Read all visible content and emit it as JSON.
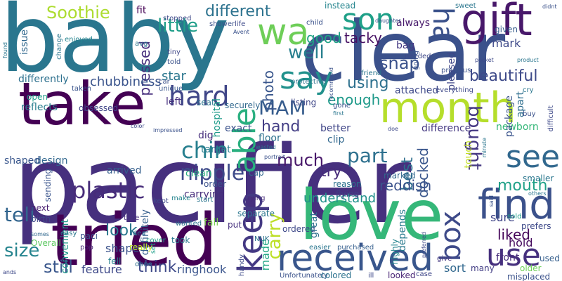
{
  "words": [
    {
      "text": "pacifier",
      "color": "#46307e"
    },
    {
      "text": "baby",
      "color": "#2a768e"
    },
    {
      "text": "clear",
      "color": "#3b518b"
    },
    {
      "text": "tried",
      "color": "#440154"
    },
    {
      "text": "love",
      "color": "#35b779"
    },
    {
      "text": "take",
      "color": "#440154"
    },
    {
      "text": "month",
      "color": "#b5de2b"
    },
    {
      "text": "gift",
      "color": "#48186a"
    },
    {
      "text": "find",
      "color": "#3b518b"
    },
    {
      "text": "received",
      "color": "#39568c"
    },
    {
      "text": "wa",
      "color": "#6ece58"
    },
    {
      "text": "say",
      "color": "#21918c"
    },
    {
      "text": "keep",
      "color": "#443983"
    },
    {
      "text": "see",
      "color": "#31688e"
    },
    {
      "text": "son",
      "color": "#1fa088"
    },
    {
      "text": "use",
      "color": "#46307e"
    },
    {
      "text": "hard",
      "color": "#404688"
    },
    {
      "text": "ha",
      "color": "#3b528b"
    },
    {
      "text": "able",
      "color": "#29af7f"
    },
    {
      "text": "box",
      "color": "#3e4a89"
    },
    {
      "text": "carry",
      "color": "#bddf26"
    },
    {
      "text": "plastic",
      "color": "#472c7a"
    },
    {
      "text": "tell",
      "color": "#32658e"
    },
    {
      "text": "MAM",
      "color": "#365c8d"
    },
    {
      "text": "chin",
      "color": "#277f8e"
    },
    {
      "text": "Soothie",
      "color": "#addc30"
    },
    {
      "text": "different",
      "color": "#2c728e"
    },
    {
      "text": "little",
      "color": "#1f9e89"
    },
    {
      "text": "snap",
      "color": "#3b528b"
    },
    {
      "text": "beautiful",
      "color": "#3e4a89"
    },
    {
      "text": "well",
      "color": "#277f8e"
    },
    {
      "text": "good",
      "color": "#20a386"
    },
    {
      "text": "tacky",
      "color": "#471063"
    },
    {
      "text": "mark",
      "color": "#3e4989"
    },
    {
      "text": "part",
      "color": "#2d708e"
    },
    {
      "text": "much",
      "color": "#48186a"
    },
    {
      "text": "bought",
      "color": "#453882"
    },
    {
      "text": "mouth",
      "color": "#1fa188"
    },
    {
      "text": "nipple",
      "color": "#3e4a89"
    },
    {
      "text": "size",
      "color": "#25848e"
    },
    {
      "text": "best",
      "color": "#2e6e8e"
    },
    {
      "text": "liked",
      "color": "#450559"
    },
    {
      "text": "still",
      "color": "#39568c"
    },
    {
      "text": "look",
      "color": "#2a788e"
    },
    {
      "text": "think",
      "color": "#3e4989"
    },
    {
      "text": "using",
      "color": "#2d708e"
    },
    {
      "text": "enough",
      "color": "#1f9a8a"
    },
    {
      "text": "photo",
      "color": "#39568c"
    },
    {
      "text": "pressed",
      "color": "#472f7d"
    },
    {
      "text": "chubbiness",
      "color": "#3a548c"
    },
    {
      "text": "star",
      "color": "#2a768e"
    },
    {
      "text": "hand",
      "color": "#433e85"
    },
    {
      "text": "try",
      "color": "#472c7a"
    },
    {
      "text": "made",
      "color": "#22a785"
    },
    {
      "text": "docked",
      "color": "#39568c"
    },
    {
      "text": "reddish",
      "color": "#3b528b"
    },
    {
      "text": "understand",
      "color": "#21918c"
    },
    {
      "text": "sure",
      "color": "#404588"
    },
    {
      "text": "hold",
      "color": "#460b5e"
    },
    {
      "text": "sort",
      "color": "#31688e"
    },
    {
      "text": "front",
      "color": "#472d7b"
    },
    {
      "text": "ringhook",
      "color": "#3a548c"
    },
    {
      "text": "feature",
      "color": "#3e4989"
    },
    {
      "text": "shape",
      "color": "#3b528b"
    },
    {
      "text": "design",
      "color": "#31678e"
    },
    {
      "text": "shaped",
      "color": "#39568c"
    },
    {
      "text": "convenient",
      "color": "#1f988b"
    },
    {
      "text": "definitely",
      "color": "#355f8d"
    },
    {
      "text": "carrying",
      "color": "#472d7b"
    },
    {
      "text": "clean",
      "color": "#29af7f"
    },
    {
      "text": "target",
      "color": "#287c8e"
    },
    {
      "text": "dig",
      "color": "#472f7d"
    },
    {
      "text": "exact",
      "color": "#3b528b"
    },
    {
      "text": "floor",
      "color": "#2c718e"
    },
    {
      "text": "better",
      "color": "#404688"
    },
    {
      "text": "clip",
      "color": "#31688e"
    },
    {
      "text": "difference",
      "color": "#453882"
    },
    {
      "text": "newborn",
      "color": "#35b779"
    },
    {
      "text": "attached",
      "color": "#3e4989"
    },
    {
      "text": "package",
      "color": "#3a548c"
    },
    {
      "text": "apart",
      "color": "#2e6e8e"
    },
    {
      "text": "given",
      "color": "#365d8d"
    },
    {
      "text": "always",
      "color": "#481a6c"
    },
    {
      "text": "pleased",
      "color": "#3f4788"
    },
    {
      "text": "bag",
      "color": "#443983"
    },
    {
      "text": "fit",
      "color": "#440154"
    },
    {
      "text": "instead",
      "color": "#25858e"
    },
    {
      "text": "hospital",
      "color": "#1e9b8a"
    },
    {
      "text": "reflects",
      "color": "#287d8e"
    },
    {
      "text": "obsessed",
      "color": "#404688"
    },
    {
      "text": "differently",
      "color": "#2d708e"
    },
    {
      "text": "issue",
      "color": "#31688e"
    },
    {
      "text": "open",
      "color": "#1f9e89"
    },
    {
      "text": "listing",
      "color": "#3f4788"
    },
    {
      "text": "securely",
      "color": "#31688e"
    },
    {
      "text": "left",
      "color": "#46307e"
    },
    {
      "text": "seat",
      "color": "#2a768e"
    },
    {
      "text": "sending",
      "color": "#3a548c"
    },
    {
      "text": "arrived",
      "color": "#355f8d"
    },
    {
      "text": "next",
      "color": "#481f70"
    },
    {
      "text": "Overall",
      "color": "#5ec962"
    },
    {
      "text": "paci",
      "color": "#3b528b"
    },
    {
      "text": "pop",
      "color": "#482878"
    },
    {
      "text": "fell",
      "color": "#26828e"
    },
    {
      "text": "done",
      "color": "#2e6e8e"
    },
    {
      "text": "idea",
      "color": "#31688e"
    },
    {
      "text": "took",
      "color": "#2a788e"
    },
    {
      "text": "wanted",
      "color": "#2c728e"
    },
    {
      "text": "fall",
      "color": "#7ad151"
    },
    {
      "text": "put",
      "color": "#46307e"
    },
    {
      "text": "ordered",
      "color": "#3e4989"
    },
    {
      "text": "separate",
      "color": "#2a768e"
    },
    {
      "text": "trying",
      "color": "#472c7a"
    },
    {
      "text": "order",
      "color": "#3b518b"
    },
    {
      "text": "cap",
      "color": "#31688e"
    },
    {
      "text": "great",
      "color": "#2d708e"
    },
    {
      "text": "reason",
      "color": "#2c728e"
    },
    {
      "text": "flying",
      "color": "#433e85"
    },
    {
      "text": "marked",
      "color": "#31688e"
    },
    {
      "text": "depends",
      "color": "#297a8e"
    },
    {
      "text": "touch",
      "color": "#c2df23"
    },
    {
      "text": "smaller",
      "color": "#2a768e"
    },
    {
      "text": "used",
      "color": "#355f8d"
    },
    {
      "text": "older",
      "color": "#6ece58"
    },
    {
      "text": "many",
      "color": "#433e85"
    },
    {
      "text": "prefers",
      "color": "#3e4a89"
    },
    {
      "text": "sold",
      "color": "#1f9e89"
    },
    {
      "text": "misplaced",
      "color": "#3b528b"
    },
    {
      "text": "Unfortunately",
      "color": "#3b528b"
    },
    {
      "text": "colored",
      "color": "#2c728e"
    },
    {
      "text": "looked",
      "color": "#482475"
    },
    {
      "text": "case",
      "color": "#3f4788"
    },
    {
      "text": "ill",
      "color": "#3e4a89"
    },
    {
      "text": "give",
      "color": "#453882"
    },
    {
      "text": "highly",
      "color": "#25848e"
    },
    {
      "text": "easier",
      "color": "#2a768e"
    },
    {
      "text": "purchased",
      "color": "#355f8d"
    },
    {
      "text": "handy",
      "color": "#3e4a89"
    },
    {
      "text": "NUK",
      "color": "#2c728e"
    },
    {
      "text": "really",
      "color": "#bddf26"
    },
    {
      "text": "easy",
      "color": "#2a768e"
    },
    {
      "text": "birth",
      "color": "#404688"
    },
    {
      "text": "somes",
      "color": "#31688e"
    },
    {
      "text": "cover",
      "color": "#1fa088"
    },
    {
      "text": "type",
      "color": "#46307e"
    },
    {
      "text": "kept",
      "color": "#3e4989"
    },
    {
      "text": "make",
      "color": "#25848e"
    },
    {
      "text": "start",
      "color": "#2a768e"
    },
    {
      "text": "set",
      "color": "#1f9e89"
    },
    {
      "text": "tiny",
      "color": "#3f4788"
    },
    {
      "text": "told",
      "color": "#3b528b"
    },
    {
      "text": "avg",
      "color": "#2a768e"
    },
    {
      "text": "car",
      "color": "#3b528b"
    },
    {
      "text": "unique",
      "color": "#39568c"
    },
    {
      "text": "taken",
      "color": "#3a548c"
    },
    {
      "text": "stopped",
      "color": "#3e4989"
    },
    {
      "text": "enjoyed",
      "color": "#25848e"
    },
    {
      "text": "change",
      "color": "#2a768e"
    },
    {
      "text": "shower",
      "color": "#3b528b"
    },
    {
      "text": "life",
      "color": "#3e4989"
    },
    {
      "text": "child",
      "color": "#3b528b"
    },
    {
      "text": "daughter",
      "color": "#3a548c"
    },
    {
      "text": "sweet",
      "color": "#2a768e"
    },
    {
      "text": "needed",
      "color": "#3e4989"
    },
    {
      "text": "going",
      "color": "#3b528b"
    },
    {
      "text": "protective",
      "color": "#2c728e"
    },
    {
      "text": "recommend",
      "color": "#3b528b"
    },
    {
      "text": "friend",
      "color": "#2a768e"
    },
    {
      "text": "precious",
      "color": "#3b528b"
    },
    {
      "text": "pocket",
      "color": "#3e4989"
    },
    {
      "text": "product",
      "color": "#2a768e"
    },
    {
      "text": "didnt",
      "color": "#3b528b"
    },
    {
      "text": "everything",
      "color": "#3e4989"
    },
    {
      "text": "cry",
      "color": "#2a768e"
    },
    {
      "text": "buy",
      "color": "#3b528b"
    },
    {
      "text": "difficult",
      "color": "#3e4989"
    },
    {
      "text": "others",
      "color": "#2a768e"
    },
    {
      "text": "said",
      "color": "#3b528b"
    },
    {
      "text": "minute",
      "color": "#2a768e"
    },
    {
      "text": "preferred",
      "color": "#3e4989"
    },
    {
      "text": "first",
      "color": "#2a768e"
    },
    {
      "text": "gone",
      "color": "#3b528b"
    },
    {
      "text": "ands",
      "color": "#3e4989"
    },
    {
      "text": "found",
      "color": "#2a768e"
    },
    {
      "text": "Avent",
      "color": "#3b528b"
    },
    {
      "text": "doe",
      "color": "#3e4989"
    },
    {
      "text": "portrait",
      "color": "#3b528b"
    },
    {
      "text": "wasted",
      "color": "#2a768e"
    },
    {
      "text": "color",
      "color": "#3e4989"
    },
    {
      "text": "impressed",
      "color": "#3b528b"
    }
  ]
}
